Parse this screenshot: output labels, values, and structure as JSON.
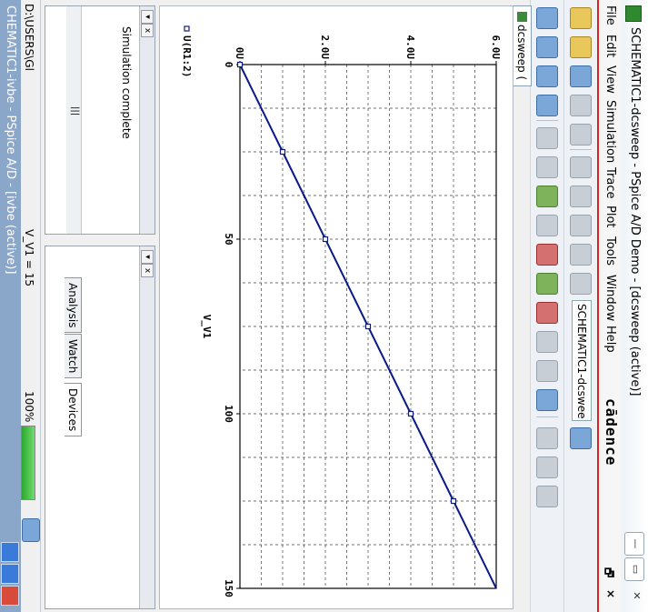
{
  "window": {
    "title": "SCHEMATIC1-dcsweep - PSpice A/D Demo - [dcsweep (active)]",
    "minimize_label": "—",
    "restore_label": "▭",
    "close_label": "✕"
  },
  "menubar": {
    "items": [
      "File",
      "Edit",
      "View",
      "Simulation",
      "Trace",
      "Plot",
      "Tools",
      "Window",
      "Help"
    ],
    "logo": "cādence",
    "mdi_restore": "🗗",
    "mdi_close": "×"
  },
  "toolbar": {
    "profile_combo": "SCHEMATIC1-dcswee",
    "icons": [
      "new-icon",
      "open-icon",
      "save-icon",
      "print-icon",
      "cut-icon",
      "copy-icon",
      "paste-icon",
      "undo-icon",
      "redo-icon",
      "zoom-in-icon",
      "zoom-out-icon",
      "zoom-area-icon",
      "zoom-fit-icon",
      "add-trace-icon",
      "fourier-icon",
      "performance-icon",
      "cursor-icon",
      "marker-icon",
      "text-label-icon",
      "run-icon"
    ]
  },
  "plot_tab": {
    "label": "dcsweep ("
  },
  "chart_data": {
    "type": "line",
    "title": "",
    "xlabel": "V_V1",
    "ylabel": "",
    "x": [
      0,
      25,
      50,
      75,
      100,
      125,
      150
    ],
    "series": [
      {
        "name": "U(R1:2)",
        "values": [
          0,
          1.0,
          2.0,
          3.0,
          4.0,
          5.0,
          6.0
        ],
        "color": "#0a1a8a"
      }
    ],
    "markers_x": [
      0,
      25,
      50,
      75,
      100,
      125
    ],
    "xlim": [
      0,
      150
    ],
    "ylim": [
      0,
      6.0
    ],
    "x_ticks": [
      "0",
      "50",
      "100",
      "150"
    ],
    "y_ticks": [
      "0U",
      "2.0U",
      "4.0U",
      "6.0U"
    ],
    "grid": true,
    "legend": "bottom-left"
  },
  "output_panel": {
    "message": "Simulation complete",
    "scroll_mark": "|||"
  },
  "watch_panel": {
    "tabs": [
      "Analysis",
      "Watch",
      "Devices"
    ]
  },
  "statusbar": {
    "path": "D:\\USERS\\Gl",
    "value": "V_V1 = 15",
    "progress_label": "100%",
    "progress": 1.0
  },
  "outer": {
    "title": "CHEMATIC1-ivbe - PSpice A/D - [ivbe (active)]"
  },
  "colors": {
    "trace": "#0a1a8a",
    "accent_red": "#dd2222",
    "progress_green": "#2ca82c"
  }
}
